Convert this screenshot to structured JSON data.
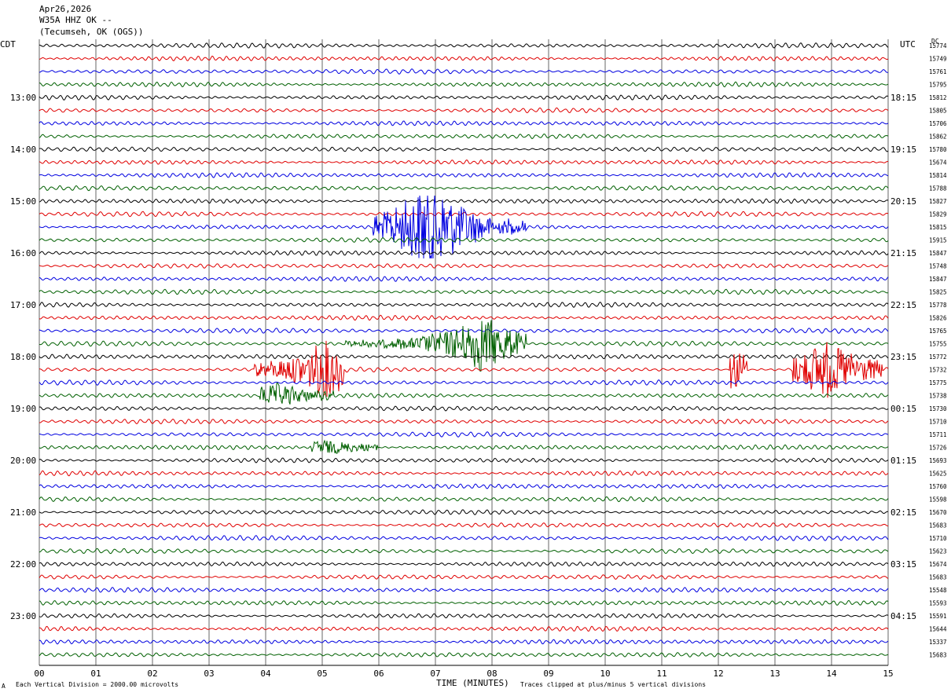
{
  "header": {
    "date": "Apr26,2026",
    "station": "W35A HHZ OK --",
    "location": "(Tecumseh, OK (OGS))"
  },
  "left_axis_label": "CDT",
  "right_axis_label": "UTC",
  "dc_label": "DC",
  "footer": {
    "scale_note": "Each Vertical Division = 2000.00 microvolts",
    "clip_note": "Traces clipped at plus/minus 5 vertical divisions",
    "corner_mark": "A"
  },
  "colors": {
    "trace_cycle": [
      "#000000",
      "#e00000",
      "#0000e0",
      "#006000"
    ],
    "grid": "#000000"
  },
  "chart_data": {
    "type": "line",
    "title": "",
    "xlabel": "TIME (MINUTES)",
    "ylabel": "",
    "x_ticks": [
      "00",
      "01",
      "02",
      "03",
      "04",
      "05",
      "06",
      "07",
      "08",
      "09",
      "10",
      "11",
      "12",
      "13",
      "14",
      "15"
    ],
    "xlim": [
      0,
      15
    ],
    "rows_per_hour": 4,
    "row_count": 48,
    "left_time_labels": [
      "13:00",
      "14:00",
      "15:00",
      "16:00",
      "17:00",
      "18:00",
      "19:00",
      "20:00",
      "21:00",
      "22:00",
      "23:00"
    ],
    "right_time_labels": [
      "18:15",
      "19:15",
      "20:15",
      "21:15",
      "22:15",
      "23:15",
      "00:15",
      "01:15",
      "02:15",
      "03:15",
      "04:15"
    ],
    "dc_offsets": [
      15774,
      15749,
      15761,
      15795,
      15812,
      15805,
      15706,
      15862,
      15780,
      15674,
      15814,
      15788,
      15827,
      15829,
      15815,
      15915,
      15847,
      15748,
      15847,
      15825,
      15778,
      15826,
      15765,
      15755,
      15772,
      15732,
      15775,
      15738,
      15730,
      15710,
      15711,
      15726,
      15693,
      15625,
      15760,
      15598,
      15670,
      15683,
      15710,
      15623,
      15674,
      15683,
      15548,
      15593,
      15591,
      15644,
      15337,
      15683
    ],
    "events": [
      {
        "row": 14,
        "start_min": 5.9,
        "end_min": 8.6,
        "peak_min": 6.9,
        "amplitude_div": 5
      },
      {
        "row": 23,
        "start_min": 5.4,
        "end_min": 8.6,
        "peak_min": 7.8,
        "amplitude_div": 3
      },
      {
        "row": 25,
        "start_min": 3.8,
        "end_min": 5.4,
        "peak_min": 5.1,
        "amplitude_div": 3
      },
      {
        "row": 25,
        "start_min": 12.2,
        "end_min": 12.5,
        "peak_min": 12.3,
        "amplitude_div": 2
      },
      {
        "row": 25,
        "start_min": 13.3,
        "end_min": 14.9,
        "peak_min": 13.9,
        "amplitude_div": 3
      },
      {
        "row": 27,
        "start_min": 3.9,
        "end_min": 5.2,
        "peak_min": 4.2,
        "amplitude_div": 1
      },
      {
        "row": 31,
        "start_min": 4.8,
        "end_min": 6.0,
        "peak_min": 5.0,
        "amplitude_div": 0.6
      }
    ]
  }
}
